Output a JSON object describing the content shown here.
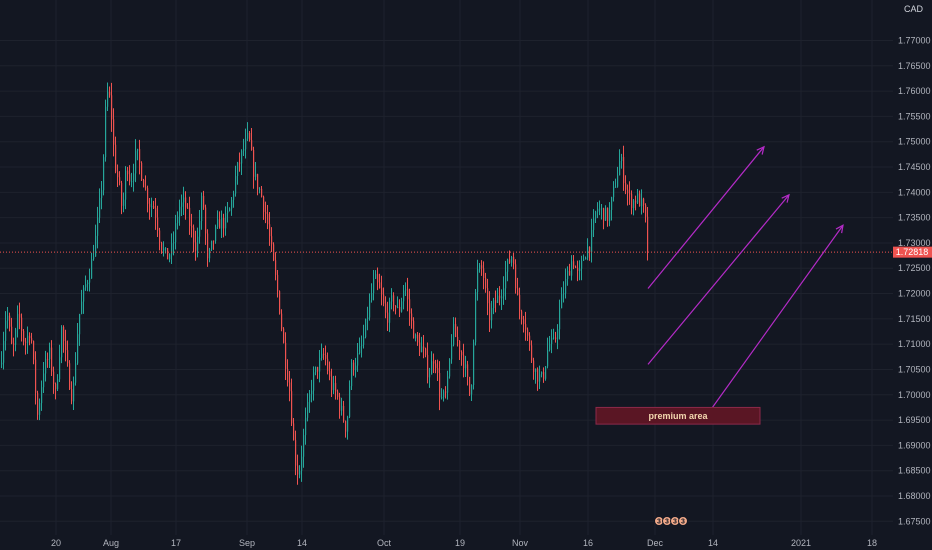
{
  "chart_data": {
    "type": "candlestick",
    "title": "",
    "currency": "CAD",
    "ylim": [
      1.6715,
      1.778
    ],
    "y_ticks": [
      "1.77000",
      "1.76500",
      "1.76000",
      "1.75500",
      "1.75000",
      "1.74500",
      "1.74000",
      "1.73500",
      "1.73000",
      "1.72500",
      "1.72000",
      "1.71500",
      "1.71000",
      "1.70500",
      "1.70000",
      "1.69500",
      "1.69000",
      "1.68500",
      "1.68000",
      "1.67500"
    ],
    "x_ticks": [
      "20",
      "Aug",
      "17",
      "Sep",
      "14",
      "Oct",
      "19",
      "Nov",
      "16",
      "Dec",
      "14",
      "2021",
      "18"
    ],
    "last_price": "1.72818",
    "last_price_value": 1.72818,
    "grid": true,
    "up_color": "#26a69a",
    "down_color": "#ef5350",
    "drawing_color": "#b42bc7",
    "price_path": [
      [
        0,
        1.706
      ],
      [
        6,
        1.717
      ],
      [
        12,
        1.708
      ],
      [
        18,
        1.716
      ],
      [
        24,
        1.71
      ],
      [
        30,
        1.713
      ],
      [
        37,
        1.696
      ],
      [
        43,
        1.705
      ],
      [
        49,
        1.708
      ],
      [
        55,
        1.7
      ],
      [
        61,
        1.713
      ],
      [
        67,
        1.705
      ],
      [
        72,
        1.699
      ],
      [
        78,
        1.715
      ],
      [
        84,
        1.721
      ],
      [
        90,
        1.725
      ],
      [
        96,
        1.732
      ],
      [
        102,
        1.743
      ],
      [
        106,
        1.76
      ],
      [
        110,
        1.758
      ],
      [
        114,
        1.746
      ],
      [
        118,
        1.742
      ],
      [
        122,
        1.736
      ],
      [
        126,
        1.746
      ],
      [
        130,
        1.742
      ],
      [
        136,
        1.748
      ],
      [
        142,
        1.743
      ],
      [
        148,
        1.738
      ],
      [
        154,
        1.737
      ],
      [
        160,
        1.73
      ],
      [
        166,
        1.727
      ],
      [
        172,
        1.729
      ],
      [
        178,
        1.737
      ],
      [
        184,
        1.738
      ],
      [
        190,
        1.733
      ],
      [
        196,
        1.729
      ],
      [
        202,
        1.74
      ],
      [
        207,
        1.726
      ],
      [
        212,
        1.73
      ],
      [
        218,
        1.734
      ],
      [
        224,
        1.734
      ],
      [
        230,
        1.737
      ],
      [
        236,
        1.744
      ],
      [
        242,
        1.748
      ],
      [
        248,
        1.751
      ],
      [
        254,
        1.743
      ],
      [
        260,
        1.74
      ],
      [
        266,
        1.735
      ],
      [
        272,
        1.727
      ],
      [
        278,
        1.719
      ],
      [
        284,
        1.708
      ],
      [
        289,
        1.701
      ],
      [
        294,
        1.688
      ],
      [
        298,
        1.684
      ],
      [
        302,
        1.69
      ],
      [
        306,
        1.696
      ],
      [
        312,
        1.703
      ],
      [
        318,
        1.706
      ],
      [
        324,
        1.708
      ],
      [
        330,
        1.702
      ],
      [
        336,
        1.7
      ],
      [
        342,
        1.696
      ],
      [
        346,
        1.693
      ],
      [
        350,
        1.705
      ],
      [
        356,
        1.707
      ],
      [
        362,
        1.71
      ],
      [
        368,
        1.717
      ],
      [
        374,
        1.723
      ],
      [
        380,
        1.72
      ],
      [
        386,
        1.715
      ],
      [
        392,
        1.719
      ],
      [
        398,
        1.716
      ],
      [
        404,
        1.722
      ],
      [
        410,
        1.715
      ],
      [
        416,
        1.71
      ],
      [
        422,
        1.709
      ],
      [
        428,
        1.704
      ],
      [
        434,
        1.708
      ],
      [
        440,
        1.699
      ],
      [
        446,
        1.7
      ],
      [
        452,
        1.713
      ],
      [
        458,
        1.71
      ],
      [
        464,
        1.706
      ],
      [
        470,
        1.699
      ],
      [
        476,
        1.724
      ],
      [
        482,
        1.725
      ],
      [
        488,
        1.715
      ],
      [
        494,
        1.718
      ],
      [
        500,
        1.72
      ],
      [
        506,
        1.725
      ],
      [
        512,
        1.728
      ],
      [
        518,
        1.717
      ],
      [
        524,
        1.715
      ],
      [
        530,
        1.708
      ],
      [
        536,
        1.704
      ],
      [
        542,
        1.703
      ],
      [
        548,
        1.71
      ],
      [
        554,
        1.71
      ],
      [
        560,
        1.718
      ],
      [
        566,
        1.723
      ],
      [
        572,
        1.727
      ],
      [
        578,
        1.723
      ],
      [
        584,
        1.728
      ],
      [
        590,
        1.73
      ],
      [
        596,
        1.737
      ],
      [
        602,
        1.736
      ],
      [
        608,
        1.735
      ],
      [
        614,
        1.741
      ],
      [
        620,
        1.747
      ],
      [
        624,
        1.742
      ],
      [
        628,
        1.739
      ],
      [
        632,
        1.738
      ],
      [
        636,
        1.739
      ],
      [
        640,
        1.738
      ],
      [
        644,
        1.736
      ],
      [
        648,
        1.7282
      ]
    ],
    "drawings": {
      "arrows": [
        {
          "from": [
            "Nov 27",
            1.721
          ],
          "to": [
            "Dec 25",
            1.749
          ]
        },
        {
          "from": [
            "Nov 27",
            1.706
          ],
          "to": [
            "Dec 27",
            1.7395
          ]
        },
        {
          "from": [
            "Dec 6",
            1.696
          ],
          "to": [
            "Dec 29",
            1.7335
          ]
        }
      ],
      "zone": {
        "label": "premium area",
        "x": [
          "Nov 18",
          "Dec 21"
        ],
        "y": [
          1.6942,
          1.6975
        ]
      }
    },
    "event_markers": [
      "3",
      "3",
      "3",
      "3"
    ]
  }
}
